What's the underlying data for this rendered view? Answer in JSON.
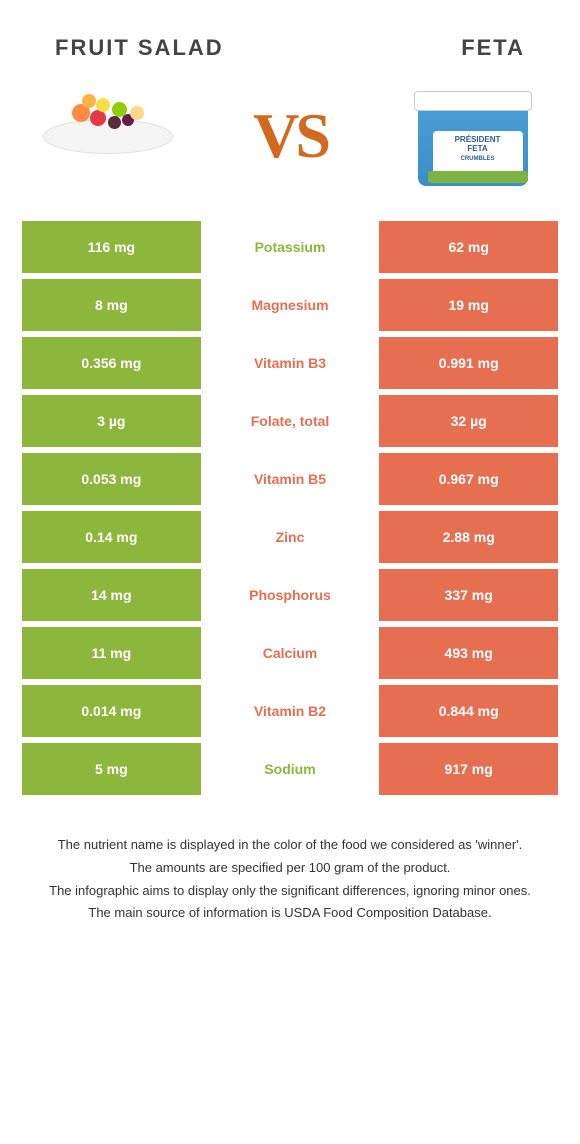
{
  "header": {
    "left_title": "FRUIT SALAD",
    "right_title": "FETA",
    "vs_label": "VS"
  },
  "colors": {
    "green": "#8cb63c",
    "orange": "#e76f51",
    "vs_text": "#c8691f",
    "text_dark": "#444444"
  },
  "table": {
    "type": "comparison-table",
    "rows": [
      {
        "nutrient": "Potassium",
        "left": "116 mg",
        "right": "62 mg",
        "winner": "left"
      },
      {
        "nutrient": "Magnesium",
        "left": "8 mg",
        "right": "19 mg",
        "winner": "right"
      },
      {
        "nutrient": "Vitamin B3",
        "left": "0.356 mg",
        "right": "0.991 mg",
        "winner": "right"
      },
      {
        "nutrient": "Folate, total",
        "left": "3 µg",
        "right": "32 µg",
        "winner": "right"
      },
      {
        "nutrient": "Vitamin B5",
        "left": "0.053 mg",
        "right": "0.967 mg",
        "winner": "right"
      },
      {
        "nutrient": "Zinc",
        "left": "0.14 mg",
        "right": "2.88 mg",
        "winner": "right"
      },
      {
        "nutrient": "Phosphorus",
        "left": "14 mg",
        "right": "337 mg",
        "winner": "right"
      },
      {
        "nutrient": "Calcium",
        "left": "11 mg",
        "right": "493 mg",
        "winner": "right"
      },
      {
        "nutrient": "Vitamin B2",
        "left": "0.014 mg",
        "right": "0.844 mg",
        "winner": "right"
      },
      {
        "nutrient": "Sodium",
        "left": "5 mg",
        "right": "917 mg",
        "winner": "left"
      }
    ]
  },
  "footer": {
    "line1": "The nutrient name is displayed in the color of the food we considered as 'winner'.",
    "line2": "The amounts are specified per 100 gram of the product.",
    "line3": "The infographic aims to display only the significant differences, ignoring minor ones.",
    "line4": "The main source of information is USDA Food Composition Database."
  }
}
